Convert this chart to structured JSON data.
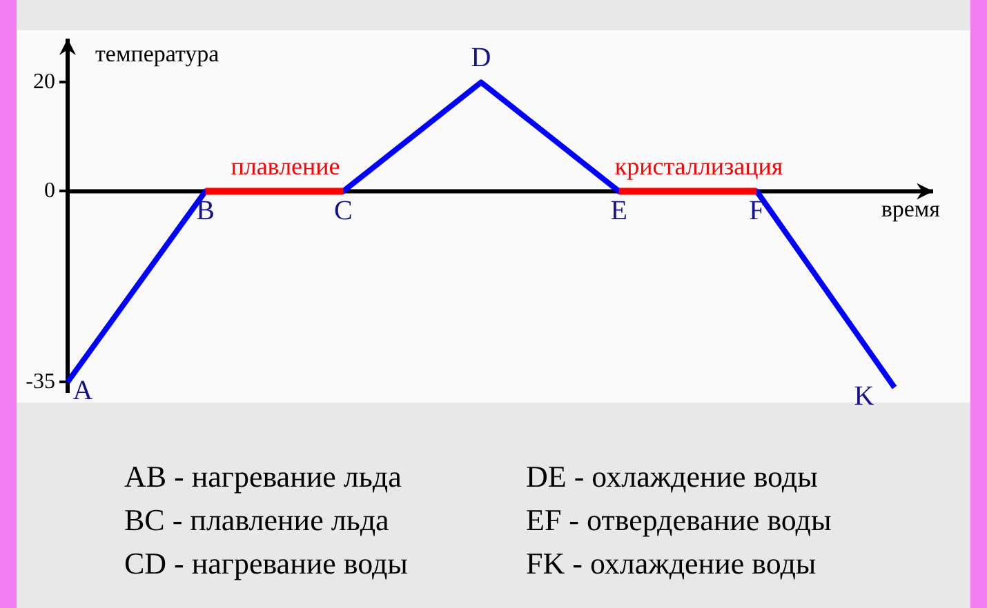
{
  "chart_data": {
    "type": "line",
    "xlabel": "время",
    "ylabel": "температура",
    "categories": [
      "A",
      "B",
      "C",
      "D",
      "E",
      "F",
      "K"
    ],
    "series": [
      {
        "color": "#0000ff",
        "values": [
          -35,
          0,
          0,
          20,
          0,
          0,
          -36
        ]
      },
      {
        "name": "плавление",
        "color": "#ff0000",
        "values": [
          null,
          0,
          0,
          null,
          null,
          null,
          null
        ]
      },
      {
        "name": "кристаллизация",
        "color": "#ff0000",
        "values": [
          null,
          null,
          null,
          null,
          0,
          0,
          null
        ]
      }
    ],
    "ylim": [
      -37,
      28
    ],
    "yticks": [
      -35,
      0,
      20
    ],
    "grid": false,
    "legend": false,
    "marker": "none",
    "annotations": [
      "AB - нагревание льда",
      "BC - плавление льда",
      "CD - нагревание воды",
      "DE - охлаждение воды",
      "EF - отвердевание воды",
      "FK - охлаждение воды"
    ]
  }
}
